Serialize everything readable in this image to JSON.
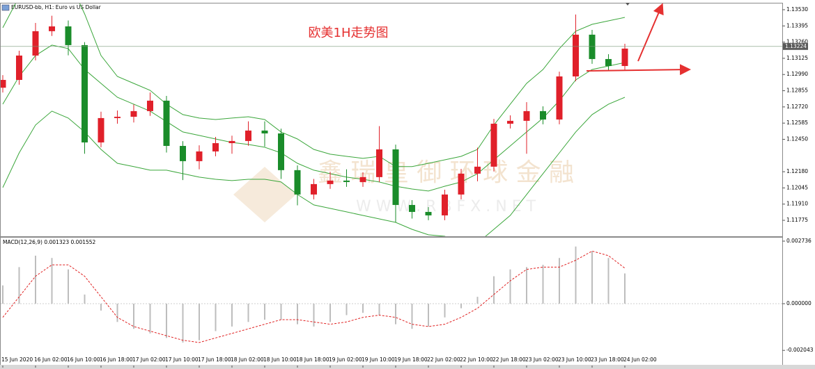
{
  "chart_data": [
    {
      "type": "candlestick",
      "title": "EURUSD-bb, H1:  Euro vs US Dollar",
      "annotation": "欧美1H走势图",
      "watermark": [
        "鑫 瑞 皇 御 环 球 金 融",
        "W W W . R B F X . N E T"
      ],
      "categories": [
        "15 Jun 2020",
        null,
        "16 Jun 02:00",
        null,
        "16 Jun 10:00",
        null,
        "16 Jun 18:00",
        null,
        "17 Jun 02:00",
        null,
        "17 Jun 10:00",
        null,
        "17 Jun 18:00",
        null,
        "18 Jun 02:00",
        null,
        "18 Jun 10:00",
        null,
        "18 Jun 18:00",
        null,
        "19 Jun 02:00",
        null,
        "19 Jun 10:00",
        null,
        "19 Jun 18:00",
        null,
        "22 Jun 02:00",
        null,
        "22 Jun 10:00",
        null,
        "22 Jun 18:00",
        null,
        "23 Jun 02:00",
        null,
        "23 Jun 10:00",
        null,
        "23 Jun 18:00",
        null,
        "24 Jun 02:00"
      ],
      "open": [
        1.1288,
        1.12945,
        1.13148,
        1.13351,
        1.13391,
        1.13235,
        1.12424,
        1.12627,
        1.12638,
        1.12685,
        1.12772,
        1.12395,
        1.12268,
        1.12349,
        1.12418,
        1.12436,
        1.12523,
        1.12499,
        1.12193,
        1.1199,
        1.12077,
        1.12106,
        1.12094,
        1.12135,
        1.12366,
        1.11903,
        1.11845,
        1.11816,
        1.1199,
        1.12164,
        1.12222,
        1.1258,
        1.12604,
        1.12685,
        1.12615,
        1.12974,
        1.13322,
        1.13119,
        1.13061
      ],
      "high": [
        1.12985,
        1.13188,
        1.1342,
        1.1348,
        1.1344,
        1.1326,
        1.1268,
        1.1269,
        1.1274,
        1.1284,
        1.12812,
        1.12435,
        1.124,
        1.1247,
        1.1248,
        1.126,
        1.126,
        1.12539,
        1.12233,
        1.1212,
        1.1218,
        1.122,
        1.12175,
        1.1256,
        1.12406,
        1.11943,
        1.11885,
        1.1203,
        1.12204,
        1.1238,
        1.1262,
        1.1265,
        1.1276,
        1.12725,
        1.13014,
        1.1349,
        1.13362,
        1.13159,
        1.13246
      ],
      "low": [
        1.1284,
        1.12905,
        1.13108,
        1.13311,
        1.1315,
        1.1233,
        1.12384,
        1.1258,
        1.1259,
        1.12645,
        1.1234,
        1.1211,
        1.122,
        1.12309,
        1.1233,
        1.12396,
        1.1239,
        1.1212,
        1.119,
        1.1195,
        1.12037,
        1.12054,
        1.12054,
        1.12095,
        1.1176,
        1.1179,
        1.11776,
        1.11776,
        1.1195,
        1.121,
        1.12182,
        1.1254,
        1.1233,
        1.12575,
        1.12575,
        1.12934,
        1.13079,
        1.13021,
        1.13021
      ],
      "close": [
        1.12945,
        1.13148,
        1.13351,
        1.13391,
        1.13235,
        1.12424,
        1.12627,
        1.12638,
        1.12685,
        1.12772,
        1.12395,
        1.12268,
        1.12349,
        1.12418,
        1.12436,
        1.12523,
        1.12499,
        1.12193,
        1.1199,
        1.12077,
        1.12106,
        1.12094,
        1.12135,
        1.12366,
        1.11903,
        1.11845,
        1.11816,
        1.1199,
        1.12164,
        1.12222,
        1.1258,
        1.12604,
        1.12685,
        1.12615,
        1.12974,
        1.13322,
        1.13119,
        1.13061,
        1.13206
      ],
      "up_color": "#e0202a",
      "down_color": "#1a8c2a",
      "bands": {
        "color": "#3aa63a",
        "upper": [
          1.1338,
          1.1364,
          1.13785,
          1.13843,
          1.13785,
          1.13495,
          1.13148,
          1.12974,
          1.12916,
          1.12858,
          1.12743,
          1.12656,
          1.12627,
          1.12615,
          1.12627,
          1.12638,
          1.12615,
          1.12511,
          1.12453,
          1.12366,
          1.12326,
          1.12308,
          1.12291,
          1.12308,
          1.12222,
          1.12222,
          1.1225,
          1.12279,
          1.12308,
          1.12366,
          1.12569,
          1.12743,
          1.12916,
          1.13032,
          1.13206,
          1.13351,
          1.13408,
          1.13437,
          1.13466
        ],
        "middle": [
          1.12743,
          1.12974,
          1.13148,
          1.13235,
          1.13206,
          1.13032,
          1.12916,
          1.128,
          1.12743,
          1.12685,
          1.12598,
          1.12511,
          1.12482,
          1.12453,
          1.12424,
          1.12407,
          1.12384,
          1.12337,
          1.1225,
          1.12193,
          1.12164,
          1.12135,
          1.12117,
          1.12094,
          1.12059,
          1.12036,
          1.12019,
          1.12059,
          1.12094,
          1.12164,
          1.12279,
          1.12395,
          1.12511,
          1.12627,
          1.12772,
          1.12945,
          1.13032,
          1.13061,
          1.1309
        ],
        "lower": [
          1.12048,
          1.12337,
          1.12569,
          1.12685,
          1.12627,
          1.12511,
          1.12366,
          1.1225,
          1.12222,
          1.12193,
          1.12193,
          1.12164,
          1.12135,
          1.12117,
          1.12106,
          1.12117,
          1.12117,
          1.12094,
          1.1199,
          1.11903,
          1.11874,
          1.11845,
          1.11816,
          1.11787,
          1.11758,
          1.117,
          1.11654,
          1.11642,
          1.11585,
          1.11585,
          1.117,
          1.11816,
          1.1199,
          1.12164,
          1.12337,
          1.12511,
          1.12656,
          1.12743,
          1.128
        ]
      },
      "current_price": 1.13224,
      "ylim": [
        1.11642,
        1.13582
      ],
      "yticks": [
        {
          "value": 1.1353,
          "label": "1.13530"
        },
        1.13395,
        {
          "value": 1.1326,
          "label": "1.13260"
        },
        1.13125,
        {
          "value": 1.1299,
          "label": "1.12990"
        },
        1.12855,
        {
          "value": 1.1272,
          "label": "1.12720"
        },
        1.12585,
        {
          "value": 1.1245,
          "label": "1.12450"
        },
        {
          "value": 1.1218,
          "label": "1.12180"
        },
        1.12045,
        {
          "value": 1.1191,
          "label": "1.11910"
        },
        1.11775
      ]
    },
    {
      "type": "macd",
      "title": "MACD(12,26,9) 0.001323 0.001552",
      "histogram": {
        "color": "#bdbdbd",
        "values": [
          0.0008,
          0.0016,
          0.0021,
          0.002,
          0.0015,
          0.0004,
          -0.0003,
          -0.0008,
          -0.0011,
          -0.0013,
          -0.0015,
          -0.0017,
          -0.0016,
          -0.0012,
          -0.001,
          -0.0008,
          -0.0007,
          -0.0007,
          -0.0009,
          -0.001,
          -0.0008,
          -0.0005,
          -0.0004,
          -0.0005,
          -0.0009,
          -0.0011,
          -0.001,
          -0.0006,
          -0.0002,
          0.0003,
          0.0012,
          0.0015,
          0.0016,
          0.0017,
          0.002,
          0.0025,
          0.0023,
          0.002,
          0.001323
        ]
      },
      "signal": {
        "color": "#e02020",
        "values": [
          -0.0006,
          0.0003,
          0.0012,
          0.0017,
          0.0017,
          0.0012,
          0.0003,
          -0.0006,
          -0.001,
          -0.0012,
          -0.0014,
          -0.0016,
          -0.0017,
          -0.0015,
          -0.0013,
          -0.0011,
          -0.0009,
          -0.0007,
          -0.0007,
          -0.0008,
          -0.0009,
          -0.0008,
          -0.0006,
          -0.0005,
          -0.0006,
          -0.0009,
          -0.001,
          -0.0009,
          -0.0006,
          -0.0002,
          0.0004,
          0.001,
          0.0015,
          0.0016,
          0.0016,
          0.0019,
          0.0023,
          0.0021,
          0.001552
        ]
      },
      "ylim": [
        -0.002675,
        0.002888
      ],
      "yticks": [
        0.002736,
        {
          "value": 0,
          "label": "0.000000"
        },
        -0.002043
      ]
    }
  ]
}
